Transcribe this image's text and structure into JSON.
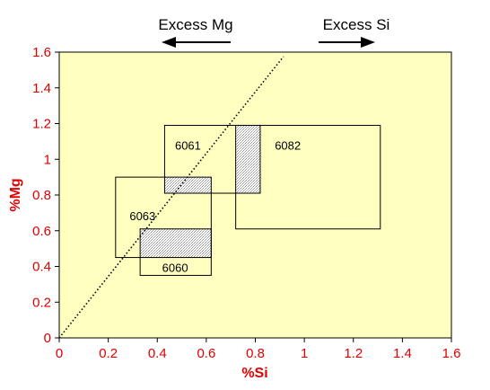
{
  "chart_data": {
    "type": "scatter",
    "title": "",
    "xlabel": "%Si",
    "ylabel": "%Mg",
    "xlim": [
      0,
      1.6
    ],
    "ylim": [
      0,
      1.6
    ],
    "x_ticks": [
      "0",
      "0.2",
      "0.4",
      "0.6",
      "0.8",
      "1",
      "1.2",
      "1.4",
      "1.6"
    ],
    "y_ticks": [
      "0",
      "0.2",
      "0.4",
      "0.6",
      "0.8",
      "1",
      "1.2",
      "1.4",
      "1.6"
    ],
    "grid": false,
    "plot_background": "#ffffc0",
    "alloy_ranges": [
      {
        "label": "6061",
        "si": [
          0.43,
          0.82
        ],
        "mg": [
          0.81,
          1.19
        ]
      },
      {
        "label": "6082",
        "si": [
          0.72,
          1.31
        ],
        "mg": [
          0.61,
          1.19
        ]
      },
      {
        "label": "6063",
        "si": [
          0.23,
          0.62
        ],
        "mg": [
          0.45,
          0.9
        ]
      },
      {
        "label": "6060",
        "si": [
          0.33,
          0.62
        ],
        "mg": [
          0.35,
          0.61
        ]
      }
    ],
    "overlap_regions": [
      {
        "si": [
          0.43,
          0.62
        ],
        "mg": [
          0.81,
          0.9
        ]
      },
      {
        "si": [
          0.72,
          0.82
        ],
        "mg": [
          0.81,
          1.19
        ]
      },
      {
        "si": [
          0.33,
          0.62
        ],
        "mg": [
          0.45,
          0.61
        ]
      }
    ],
    "balance_line": {
      "style": "dotted",
      "points": [
        [
          0,
          0
        ],
        [
          0.915,
          1.575
        ]
      ]
    },
    "annotations": [
      {
        "text": "Excess Mg",
        "arrow": "left"
      },
      {
        "text": "Excess Si",
        "arrow": "right"
      }
    ]
  }
}
